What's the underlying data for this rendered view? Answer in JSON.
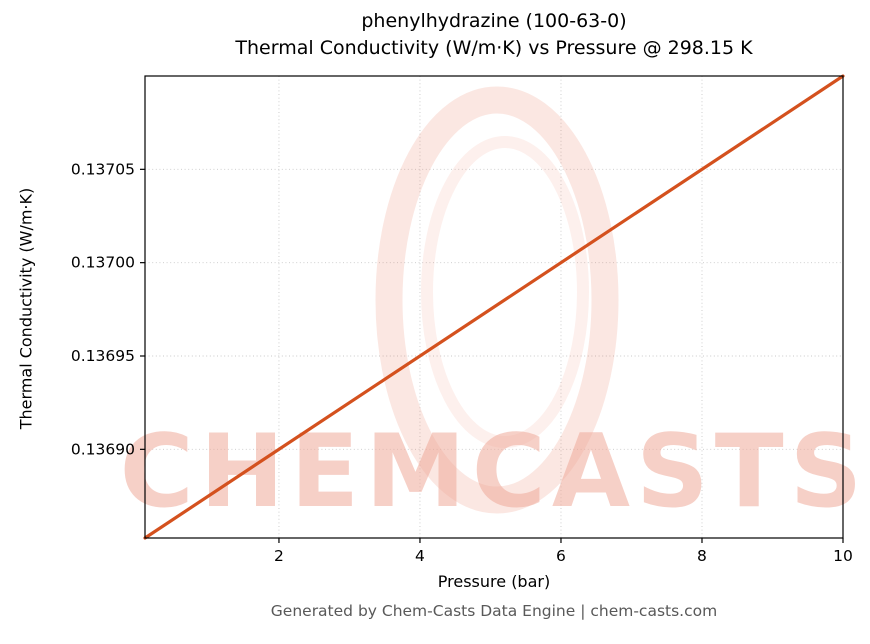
{
  "figure": {
    "footer": "Generated by Chem-Casts Data Engine | chem-casts.com",
    "background": "#ffffff"
  },
  "chart_data": {
    "type": "line",
    "title": "phenylhydrazine (100-63-0)",
    "subtitle": "Thermal Conductivity (W/m·K) vs Pressure @ 298.15 K",
    "xlabel": "Pressure (bar)",
    "ylabel": "Thermal Conductivity (W/m·K)",
    "series": [
      {
        "name": "thermal-conductivity-vs-pressure",
        "x": [
          0.1,
          10
        ],
        "y": [
          0.1368525,
          0.1371
        ]
      }
    ],
    "xlim": [
      0.1,
      10
    ],
    "ylim": [
      0.1368525,
      0.1371
    ],
    "xticks": [
      2,
      4,
      6,
      8,
      10
    ],
    "xtick_labels": [
      "2",
      "4",
      "6",
      "8",
      "10"
    ],
    "yticks": [
      0.1369,
      0.13695,
      0.137,
      0.13705
    ],
    "ytick_labels": [
      "0.13690",
      "0.13695",
      "0.13700",
      "0.13705"
    ],
    "grid": true,
    "legend": false,
    "line_color": "#d4511e",
    "grid_color": "#c9c9c9",
    "axis_color": "#000000",
    "watermark": {
      "text": "CHEMCASTS",
      "text_color": "#f0ab9b",
      "ring_color": "#e86a4a"
    }
  }
}
